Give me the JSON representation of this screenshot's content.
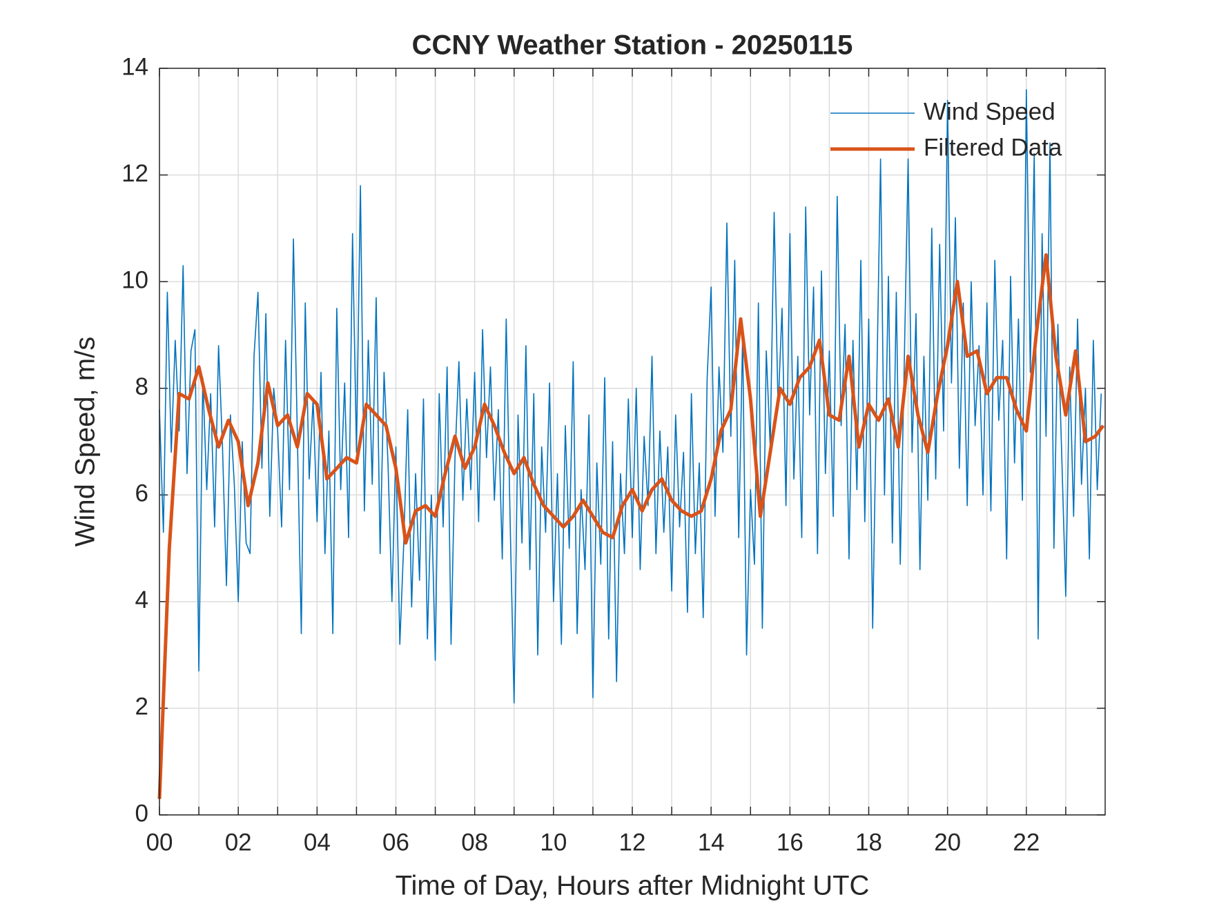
{
  "chart_data": {
    "type": "line",
    "title": "CCNY Weather Station - 20250115",
    "x_label": "Time of Day, Hours after Midnight UTC",
    "y_label": "Wind Speed, m/s",
    "xlim": [
      0,
      24
    ],
    "ylim": [
      0,
      14
    ],
    "xticks": [
      {
        "value": 0,
        "label": "00"
      },
      {
        "value": 2,
        "label": "02"
      },
      {
        "value": 4,
        "label": "04"
      },
      {
        "value": 6,
        "label": "06"
      },
      {
        "value": 8,
        "label": "08"
      },
      {
        "value": 10,
        "label": "10"
      },
      {
        "value": 12,
        "label": "12"
      },
      {
        "value": 14,
        "label": "14"
      },
      {
        "value": 16,
        "label": "16"
      },
      {
        "value": 18,
        "label": "18"
      },
      {
        "value": 20,
        "label": "20"
      },
      {
        "value": 22,
        "label": "22"
      }
    ],
    "xminorticks": [
      1,
      3,
      5,
      7,
      9,
      11,
      13,
      15,
      17,
      19,
      21,
      23
    ],
    "yticks": [
      0,
      2,
      4,
      6,
      8,
      10,
      12,
      14
    ],
    "grid": true,
    "legend": "northeast",
    "series": [
      {
        "name": "Wind Speed",
        "color": "#0072bd",
        "width": 1.6,
        "x": [
          0,
          0.1,
          0.2,
          0.3,
          0.4,
          0.5,
          0.6,
          0.7,
          0.8,
          0.9,
          1,
          1.1,
          1.2,
          1.3,
          1.4,
          1.5,
          1.6,
          1.7,
          1.8,
          1.9,
          2,
          2.1,
          2.2,
          2.3,
          2.4,
          2.5,
          2.6,
          2.7,
          2.8,
          2.9,
          3,
          3.1,
          3.2,
          3.3,
          3.4,
          3.5,
          3.6,
          3.7,
          3.8,
          3.9,
          4,
          4.1,
          4.2,
          4.3,
          4.4,
          4.5,
          4.6,
          4.7,
          4.8,
          4.9,
          5,
          5.1,
          5.2,
          5.3,
          5.4,
          5.5,
          5.6,
          5.7,
          5.8,
          5.9,
          6,
          6.1,
          6.2,
          6.3,
          6.4,
          6.5,
          6.6,
          6.7,
          6.8,
          6.9,
          7,
          7.1,
          7.2,
          7.3,
          7.4,
          7.5,
          7.6,
          7.7,
          7.8,
          7.9,
          8,
          8.1,
          8.2,
          8.3,
          8.4,
          8.5,
          8.6,
          8.7,
          8.8,
          8.9,
          9,
          9.1,
          9.2,
          9.3,
          9.4,
          9.5,
          9.6,
          9.7,
          9.8,
          9.9,
          10,
          10.1,
          10.2,
          10.3,
          10.4,
          10.5,
          10.6,
          10.7,
          10.8,
          10.9,
          11,
          11.1,
          11.2,
          11.3,
          11.4,
          11.5,
          11.6,
          11.7,
          11.8,
          11.9,
          12,
          12.1,
          12.2,
          12.3,
          12.4,
          12.5,
          12.6,
          12.7,
          12.8,
          12.9,
          13,
          13.1,
          13.2,
          13.3,
          13.4,
          13.5,
          13.6,
          13.7,
          13.8,
          13.9,
          14,
          14.1,
          14.2,
          14.3,
          14.4,
          14.5,
          14.6,
          14.7,
          14.8,
          14.9,
          15,
          15.1,
          15.2,
          15.3,
          15.4,
          15.5,
          15.6,
          15.7,
          15.8,
          15.9,
          16,
          16.1,
          16.2,
          16.3,
          16.4,
          16.5,
          16.6,
          16.7,
          16.8,
          16.9,
          17,
          17.1,
          17.2,
          17.3,
          17.4,
          17.5,
          17.6,
          17.7,
          17.8,
          17.9,
          18,
          18.1,
          18.2,
          18.3,
          18.4,
          18.5,
          18.6,
          18.7,
          18.8,
          18.9,
          19,
          19.1,
          19.2,
          19.3,
          19.4,
          19.5,
          19.6,
          19.7,
          19.8,
          19.9,
          20,
          20.1,
          20.2,
          20.3,
          20.4,
          20.5,
          20.6,
          20.7,
          20.8,
          20.9,
          21,
          21.1,
          21.2,
          21.3,
          21.4,
          21.5,
          21.6,
          21.7,
          21.8,
          21.9,
          22,
          22.1,
          22.2,
          22.3,
          22.4,
          22.5,
          22.6,
          22.7,
          22.8,
          22.9,
          23,
          23.1,
          23.2,
          23.3,
          23.4,
          23.5,
          23.6,
          23.7,
          23.8,
          23.9
        ],
        "values": [
          7.6,
          5.3,
          9.8,
          6.8,
          8.9,
          7.2,
          10.3,
          6.4,
          8.7,
          9.1,
          2.7,
          8.2,
          6.1,
          7.9,
          5.4,
          8.8,
          6.9,
          4.3,
          7.5,
          6.2,
          4.0,
          7.0,
          5.1,
          4.9,
          8.6,
          9.8,
          6.5,
          9.4,
          5.6,
          8.0,
          7.2,
          5.4,
          8.9,
          6.1,
          10.8,
          7.1,
          3.4,
          9.6,
          6.3,
          7.8,
          5.5,
          8.3,
          4.9,
          7.2,
          3.4,
          9.5,
          6.1,
          8.1,
          5.2,
          10.9,
          6.8,
          11.8,
          5.7,
          8.9,
          6.2,
          9.7,
          4.9,
          8.3,
          6.6,
          4.0,
          6.9,
          3.2,
          5.1,
          7.6,
          3.9,
          6.4,
          4.4,
          7.8,
          3.3,
          6.0,
          2.9,
          7.9,
          5.4,
          8.4,
          3.2,
          6.7,
          8.5,
          5.9,
          7.8,
          6.1,
          8.3,
          5.5,
          9.1,
          6.7,
          8.4,
          5.9,
          7.6,
          4.8,
          9.3,
          5.5,
          2.1,
          7.5,
          5.1,
          8.8,
          4.6,
          7.9,
          3.0,
          6.9,
          5.3,
          8.1,
          4.0,
          6.4,
          3.2,
          7.3,
          5.0,
          8.5,
          3.4,
          6.1,
          4.6,
          7.5,
          2.2,
          6.6,
          4.7,
          8.2,
          3.3,
          7.0,
          2.5,
          6.4,
          4.9,
          7.8,
          5.2,
          8.0,
          4.6,
          7.1,
          5.8,
          8.6,
          4.9,
          7.2,
          5.3,
          6.9,
          4.2,
          7.5,
          5.4,
          6.8,
          3.8,
          7.9,
          4.9,
          6.6,
          3.7,
          8.2,
          9.9,
          5.6,
          8.4,
          6.8,
          11.1,
          7.1,
          10.4,
          5.2,
          9.0,
          3.0,
          6.1,
          4.7,
          9.6,
          3.5,
          8.7,
          6.9,
          11.3,
          7.6,
          9.5,
          5.8,
          10.9,
          6.3,
          8.6,
          5.2,
          11.4,
          7.5,
          9.9,
          4.9,
          10.2,
          6.4,
          8.7,
          5.6,
          11.6,
          7.3,
          9.2,
          4.8,
          8.9,
          6.1,
          10.4,
          5.5,
          9.3,
          3.5,
          7.9,
          12.3,
          6.0,
          10.1,
          5.1,
          9.8,
          4.7,
          8.4,
          12.3,
          6.8,
          9.4,
          4.6,
          8.6,
          5.9,
          11.0,
          6.3,
          10.7,
          7.2,
          13.4,
          8.1,
          11.2,
          6.5,
          9.6,
          5.8,
          10.0,
          7.3,
          8.8,
          6.0,
          9.6,
          5.7,
          10.4,
          7.4,
          8.9,
          4.8,
          10.1,
          6.6,
          9.3,
          5.9,
          13.6,
          8.3,
          12.4,
          3.3,
          10.9,
          7.1,
          12.6,
          5.0,
          9.2,
          6.7,
          4.1,
          8.4,
          5.6,
          9.3,
          6.2,
          8.0,
          4.8,
          8.9,
          6.1,
          7.9
        ]
      },
      {
        "name": "Filtered Data",
        "color": "#d95319",
        "width": 5,
        "x": [
          0,
          0.25,
          0.5,
          0.75,
          1,
          1.25,
          1.5,
          1.75,
          2,
          2.25,
          2.5,
          2.75,
          3,
          3.25,
          3.5,
          3.75,
          4,
          4.25,
          4.5,
          4.75,
          5,
          5.25,
          5.5,
          5.75,
          6,
          6.25,
          6.5,
          6.75,
          7,
          7.25,
          7.5,
          7.75,
          8,
          8.25,
          8.5,
          8.75,
          9,
          9.25,
          9.5,
          9.75,
          10,
          10.25,
          10.5,
          10.75,
          11,
          11.25,
          11.5,
          11.75,
          12,
          12.25,
          12.5,
          12.75,
          13,
          13.25,
          13.5,
          13.75,
          14,
          14.25,
          14.5,
          14.75,
          15,
          15.25,
          15.5,
          15.75,
          16,
          16.25,
          16.5,
          16.75,
          17,
          17.25,
          17.5,
          17.75,
          18,
          18.25,
          18.5,
          18.75,
          19,
          19.25,
          19.5,
          19.75,
          20,
          20.25,
          20.5,
          20.75,
          21,
          21.25,
          21.5,
          21.75,
          22,
          22.25,
          22.5,
          22.75,
          23,
          23.25,
          23.5,
          23.75,
          23.95
        ],
        "values": [
          0.3,
          5.0,
          7.9,
          7.8,
          8.4,
          7.6,
          6.9,
          7.4,
          7.0,
          5.8,
          6.6,
          8.1,
          7.3,
          7.5,
          6.9,
          7.9,
          7.7,
          6.3,
          6.5,
          6.7,
          6.6,
          7.7,
          7.5,
          7.3,
          6.5,
          5.1,
          5.7,
          5.8,
          5.6,
          6.4,
          7.1,
          6.5,
          6.9,
          7.7,
          7.3,
          6.8,
          6.4,
          6.7,
          6.2,
          5.8,
          5.6,
          5.4,
          5.6,
          5.9,
          5.6,
          5.3,
          5.2,
          5.8,
          6.1,
          5.7,
          6.1,
          6.3,
          5.9,
          5.7,
          5.6,
          5.7,
          6.3,
          7.2,
          7.6,
          9.3,
          7.8,
          5.6,
          6.8,
          8.0,
          7.7,
          8.2,
          8.4,
          8.9,
          7.5,
          7.4,
          8.6,
          6.9,
          7.7,
          7.4,
          7.8,
          6.9,
          8.6,
          7.5,
          6.8,
          7.9,
          8.8,
          10.0,
          8.6,
          8.7,
          7.9,
          8.2,
          8.2,
          7.6,
          7.2,
          9.0,
          10.5,
          8.6,
          7.5,
          8.7,
          7.0,
          7.1,
          7.3
        ]
      }
    ]
  }
}
